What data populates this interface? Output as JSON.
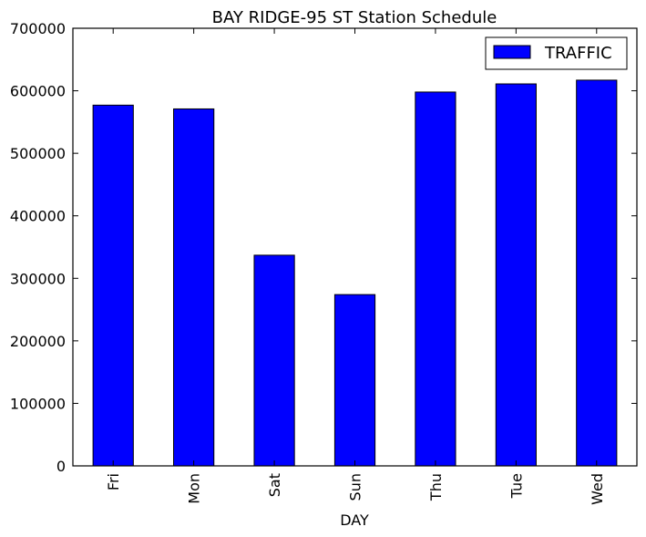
{
  "chart_data": {
    "type": "bar",
    "title": "BAY RIDGE-95 ST Station Schedule",
    "xlabel": "DAY",
    "ylabel": "",
    "categories": [
      "Fri",
      "Mon",
      "Sat",
      "Sun",
      "Thu",
      "Tue",
      "Wed"
    ],
    "series": [
      {
        "name": "TRAFFIC",
        "values": [
          577000,
          571000,
          337000,
          274000,
          598000,
          611000,
          617000
        ],
        "color": "#0000ff"
      }
    ],
    "ylim": [
      0,
      700000
    ],
    "yticks": [
      "0",
      "100000",
      "200000",
      "300000",
      "400000",
      "500000",
      "600000",
      "700000"
    ],
    "grid": false,
    "legend_position": "top-right"
  }
}
